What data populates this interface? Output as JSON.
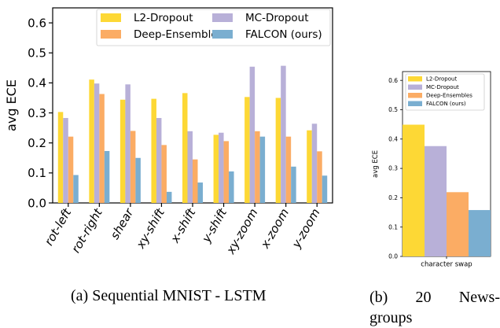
{
  "captions": {
    "a": "(a) Sequential MNIST - LSTM",
    "b_line1_parts": [
      "(b)",
      "20",
      "News-"
    ],
    "b_line2": "groups"
  },
  "colors": {
    "L2-Dropout": "#fdd835",
    "MC-Dropout": "#b8b0d8",
    "Deep-Ensembles": "#fbac64",
    "FALCON (ours)": "#7aaed0"
  },
  "chart_data": [
    {
      "type": "bar",
      "ylabel": "avg ECE",
      "xlabel": "",
      "ylim": [
        0.0,
        0.65
      ],
      "yticks": [
        0.0,
        0.1,
        0.2,
        0.3,
        0.4,
        0.5,
        0.6
      ],
      "ytick_labels": [
        "0.0",
        "0.1",
        "0.2",
        "0.3",
        "0.4",
        "0.5",
        "0.6"
      ],
      "legend_position": "top-right",
      "legend_columns": 2,
      "categories": [
        "rot-left",
        "rot-right",
        "shear",
        "xy-shift",
        "x-shift",
        "y-shift",
        "xy-zoom",
        "x-zoom",
        "y-zoom"
      ],
      "series": [
        {
          "name": "L2-Dropout",
          "values": [
            0.303,
            0.411,
            0.344,
            0.347,
            0.366,
            0.227,
            0.353,
            0.35,
            0.242
          ]
        },
        {
          "name": "MC-Dropout",
          "values": [
            0.283,
            0.398,
            0.395,
            0.283,
            0.239,
            0.234,
            0.454,
            0.457,
            0.264
          ]
        },
        {
          "name": "Deep-Ensembles",
          "values": [
            0.221,
            0.363,
            0.24,
            0.193,
            0.145,
            0.206,
            0.239,
            0.221,
            0.172
          ]
        },
        {
          "name": "FALCON (ours)",
          "values": [
            0.093,
            0.173,
            0.15,
            0.037,
            0.068,
            0.105,
            0.221,
            0.121,
            0.091
          ]
        }
      ]
    },
    {
      "type": "bar",
      "ylabel": "avg ECE",
      "xlabel": "",
      "ylim": [
        0.0,
        0.63
      ],
      "yticks": [
        0.0,
        0.1,
        0.2,
        0.3,
        0.4,
        0.5,
        0.6
      ],
      "ytick_labels": [
        "0.0",
        "0.1",
        "0.2",
        "0.3",
        "0.4",
        "0.5",
        "0.6"
      ],
      "legend_position": "top-left",
      "legend_columns": 1,
      "categories": [
        "character swap"
      ],
      "series": [
        {
          "name": "L2-Dropout",
          "values": [
            0.449
          ]
        },
        {
          "name": "MC-Dropout",
          "values": [
            0.376
          ]
        },
        {
          "name": "Deep-Ensembles",
          "values": [
            0.219
          ]
        },
        {
          "name": "FALCON (ours)",
          "values": [
            0.158
          ]
        }
      ]
    }
  ]
}
